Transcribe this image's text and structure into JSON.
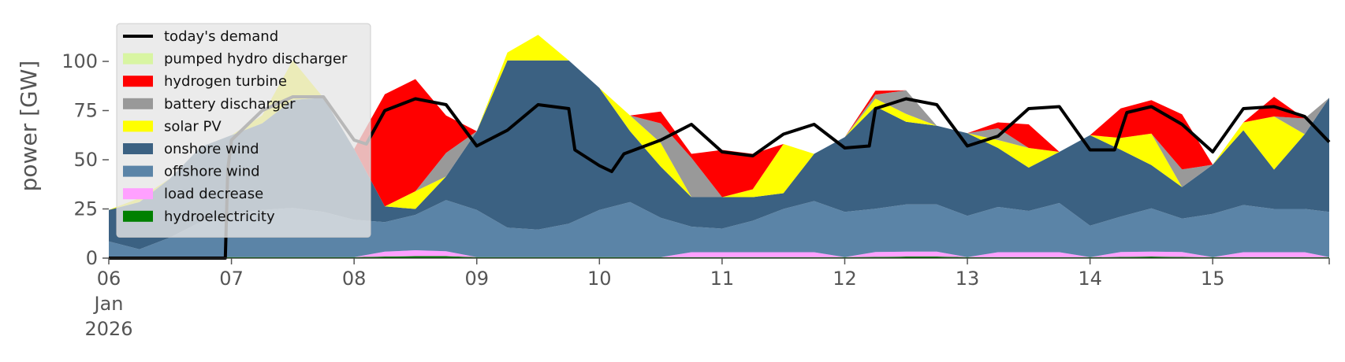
{
  "chart_data": {
    "type": "area",
    "title": "",
    "ylabel": "power [GW]",
    "xlabel": "",
    "ylim": [
      0,
      120
    ],
    "yticks": [
      0,
      25,
      50,
      75,
      100
    ],
    "xlim": [
      0,
      9.95
    ],
    "xticks": [
      {
        "t": 0,
        "label": "06",
        "extra": [
          "Jan",
          "2026"
        ]
      },
      {
        "t": 1,
        "label": "07"
      },
      {
        "t": 2,
        "label": "08"
      },
      {
        "t": 3,
        "label": "09"
      },
      {
        "t": 4,
        "label": "10"
      },
      {
        "t": 5,
        "label": "11"
      },
      {
        "t": 6,
        "label": "12"
      },
      {
        "t": 7,
        "label": "13"
      },
      {
        "t": 8,
        "label": "14"
      },
      {
        "t": 9,
        "label": "15"
      }
    ],
    "legend_position": "top-left",
    "legend": [
      {
        "name": "today's demand",
        "kind": "line",
        "color": "#000000"
      },
      {
        "name": "pumped hydro discharger",
        "kind": "patch",
        "color": "#d8f5a2"
      },
      {
        "name": "hydrogen turbine",
        "kind": "patch",
        "color": "#ff0000"
      },
      {
        "name": "battery discharger",
        "kind": "patch",
        "color": "#999999"
      },
      {
        "name": "solar PV",
        "kind": "patch",
        "color": "#ffff00"
      },
      {
        "name": "onshore wind",
        "kind": "patch",
        "color": "#3b6182"
      },
      {
        "name": "offshore wind",
        "kind": "patch",
        "color": "#5b84a7"
      },
      {
        "name": "load decrease",
        "kind": "patch",
        "color": "#ffa0ff"
      },
      {
        "name": "hydroelectricity",
        "kind": "patch",
        "color": "#008000"
      }
    ],
    "x": [
      0,
      0.25,
      0.5,
      0.75,
      1,
      1.25,
      1.5,
      1.75,
      2,
      2.25,
      2.5,
      2.75,
      3,
      3.25,
      3.5,
      3.75,
      4,
      4.25,
      4.5,
      4.75,
      5,
      5.25,
      5.5,
      5.75,
      6,
      6.25,
      6.5,
      6.75,
      7,
      7.25,
      7.5,
      7.75,
      8,
      8.25,
      8.5,
      8.75,
      9,
      9.25,
      9.5,
      9.75,
      9.95
    ],
    "stack_order_bottom_to_top": [
      "hydroelectricity",
      "load decrease",
      "offshore wind",
      "onshore wind",
      "solar PV",
      "battery discharger",
      "hydrogen turbine",
      "pumped hydro discharger"
    ],
    "series": [
      {
        "name": "hydroelectricity",
        "color": "#008000",
        "values": [
          0.5,
          0.5,
          0.5,
          0.5,
          0.5,
          0.5,
          0.5,
          0.5,
          0.5,
          0.8,
          1.0,
          1.0,
          0.5,
          0.5,
          0.5,
          0.5,
          0.5,
          0.5,
          0.5,
          0.5,
          0.5,
          0.5,
          0.5,
          0.5,
          0.5,
          0.6,
          0.8,
          0.8,
          0.5,
          0.5,
          0.5,
          0.5,
          0.5,
          0.6,
          0.8,
          0.6,
          0.5,
          0.5,
          0.5,
          0.5,
          0.5
        ]
      },
      {
        "name": "load decrease",
        "color": "#ffa0ff",
        "values": [
          0,
          0,
          0,
          0,
          0,
          0,
          0,
          0,
          0,
          2.5,
          3.0,
          2.5,
          0,
          0,
          0,
          0,
          0,
          0,
          0,
          2.5,
          2.5,
          2.5,
          2.5,
          2.5,
          0,
          2.5,
          2.5,
          2.5,
          0,
          2.5,
          2.5,
          2.5,
          0,
          2.5,
          2.5,
          2.5,
          0,
          2.5,
          2.5,
          2.5,
          0
        ]
      },
      {
        "name": "offshore wind",
        "color": "#5b84a7",
        "values": [
          8,
          4,
          10,
          18,
          22,
          24,
          25,
          23,
          19,
          15,
          18,
          26,
          24,
          15,
          14,
          17,
          24,
          28,
          20,
          13,
          12,
          16,
          22,
          26,
          23,
          22,
          24,
          24,
          21,
          23,
          21,
          25,
          16,
          18,
          22,
          17,
          22,
          24,
          22,
          22,
          23
        ]
      },
      {
        "name": "onshore wind",
        "color": "#3b6182",
        "values": [
          16,
          24,
          30,
          38,
          40,
          44,
          55,
          58,
          36,
          8,
          3,
          12,
          40,
          85,
          86,
          83,
          62,
          36,
          26,
          15,
          16,
          12,
          8,
          24,
          38,
          52,
          42,
          40,
          42,
          30,
          22,
          26,
          46,
          34,
          22,
          16,
          25,
          38,
          20,
          38,
          58
        ]
      },
      {
        "name": "solar PV",
        "color": "#ffff00",
        "values": [
          0,
          2,
          0,
          0,
          0,
          4,
          20,
          0,
          0,
          0,
          9,
          0,
          0,
          4,
          13,
          0,
          0,
          8,
          12,
          0,
          0,
          4,
          25,
          0,
          0,
          4,
          4,
          0,
          0,
          4,
          10,
          0,
          0,
          6,
          16,
          0,
          0,
          4,
          27,
          0,
          0
        ]
      },
      {
        "name": "battery discharger",
        "color": "#999999",
        "values": [
          0,
          0,
          0,
          0,
          0,
          0,
          0,
          0,
          0,
          0,
          0,
          12,
          0,
          0,
          0,
          0,
          0,
          0,
          10,
          20,
          0,
          0,
          0,
          0,
          0,
          2,
          12,
          0,
          0,
          6,
          0,
          0,
          0,
          0,
          0,
          9,
          0,
          0,
          0,
          8,
          0
        ]
      },
      {
        "name": "hydrogen turbine",
        "color": "#ff0000",
        "values": [
          0,
          0,
          0,
          0,
          0,
          0,
          0,
          0,
          0,
          57,
          57,
          19,
          0,
          0,
          0,
          0,
          0,
          0,
          6,
          2,
          24,
          18,
          0,
          0,
          0,
          2,
          0,
          0,
          0,
          3,
          12,
          0,
          0,
          15,
          17,
          28,
          0,
          0,
          10,
          0,
          0
        ]
      },
      {
        "name": "pumped hydro discharger",
        "color": "#d8f5a2",
        "values": [
          0,
          0,
          0,
          0,
          0,
          0,
          0,
          0,
          0,
          0,
          0,
          0,
          0,
          0,
          0,
          0,
          0,
          0,
          0,
          0,
          0,
          0,
          0,
          0,
          0,
          0,
          0,
          0,
          0,
          0,
          0,
          0,
          0,
          0,
          0,
          0,
          0,
          0,
          0,
          0,
          0
        ]
      }
    ],
    "demand": {
      "name": "today's demand",
      "color": "#000000",
      "points": [
        [
          0,
          0
        ],
        [
          0.95,
          0
        ],
        [
          0.97,
          45
        ],
        [
          1.0,
          60
        ],
        [
          1.25,
          75
        ],
        [
          1.5,
          82
        ],
        [
          1.75,
          82
        ],
        [
          2.0,
          60
        ],
        [
          2.1,
          58
        ],
        [
          2.25,
          75
        ],
        [
          2.5,
          81
        ],
        [
          2.75,
          78
        ],
        [
          3.0,
          57
        ],
        [
          3.25,
          65
        ],
        [
          3.5,
          78
        ],
        [
          3.75,
          76
        ],
        [
          3.8,
          55
        ],
        [
          4.0,
          47
        ],
        [
          4.1,
          44
        ],
        [
          4.2,
          53
        ],
        [
          4.5,
          60
        ],
        [
          4.75,
          68
        ],
        [
          5.0,
          54
        ],
        [
          5.25,
          52
        ],
        [
          5.5,
          63
        ],
        [
          5.75,
          68
        ],
        [
          6.0,
          56
        ],
        [
          6.2,
          57
        ],
        [
          6.25,
          76
        ],
        [
          6.5,
          81
        ],
        [
          6.75,
          78
        ],
        [
          7.0,
          57
        ],
        [
          7.25,
          62
        ],
        [
          7.5,
          76
        ],
        [
          7.75,
          77
        ],
        [
          8.0,
          55
        ],
        [
          8.2,
          55
        ],
        [
          8.3,
          74
        ],
        [
          8.5,
          77
        ],
        [
          8.75,
          68
        ],
        [
          9.0,
          54
        ],
        [
          9.25,
          76
        ],
        [
          9.5,
          77
        ],
        [
          9.75,
          72
        ],
        [
          9.95,
          59
        ]
      ]
    }
  }
}
